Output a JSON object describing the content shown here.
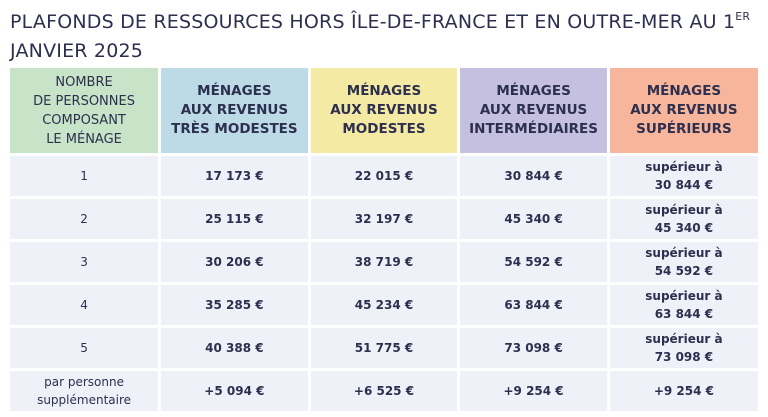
{
  "title": {
    "text": "PLAFONDS DE RESSOURCES HORS ÎLE-DE-FRANCE ET EN OUTRE-MER AU 1",
    "sup": "ER",
    "line2": "JANVIER 2025"
  },
  "colors": {
    "persons": "#c7e4c8",
    "tres_modestes": "#bcdbe7",
    "modestes": "#f4eaa3",
    "intermediaires": "#c5bfe0",
    "superieurs": "#f7b59c"
  },
  "headers": [
    [
      "NOMBRE",
      "DE PERSONNES",
      "COMPOSANT",
      "LE MÉNAGE"
    ],
    [
      "MÉNAGES",
      "AUX REVENUS",
      "TRÈS MODESTES"
    ],
    [
      "MÉNAGES",
      "AUX REVENUS",
      "MODESTES"
    ],
    [
      "MÉNAGES",
      "AUX REVENUS",
      "INTERMÉDIAIRES"
    ],
    [
      "MÉNAGES",
      "AUX REVENUS",
      "SUPÉRIEURS"
    ]
  ],
  "rows": [
    [
      "1",
      "17 173 €",
      "22 015 €",
      "30 844 €",
      "supérieur à",
      "30 844 €"
    ],
    [
      "2",
      "25 115 €",
      "32 197 €",
      "45 340 €",
      "supérieur à",
      "45 340 €"
    ],
    [
      "3",
      "30 206 €",
      "38 719 €",
      "54 592 €",
      "supérieur à",
      "54 592 €"
    ],
    [
      "4",
      "35 285 €",
      "45 234 €",
      "63 844 €",
      "supérieur à",
      "63 844 €"
    ],
    [
      "5",
      "40 388 €",
      "51 775 €",
      "73 098 €",
      "supérieur à",
      "73 098 €"
    ]
  ],
  "extra": {
    "label1": "par personne",
    "label2": "supplémentaire",
    "values": [
      "+5 094 €",
      "+6 525 €",
      "+9 254 €",
      "+9 254 €"
    ]
  }
}
